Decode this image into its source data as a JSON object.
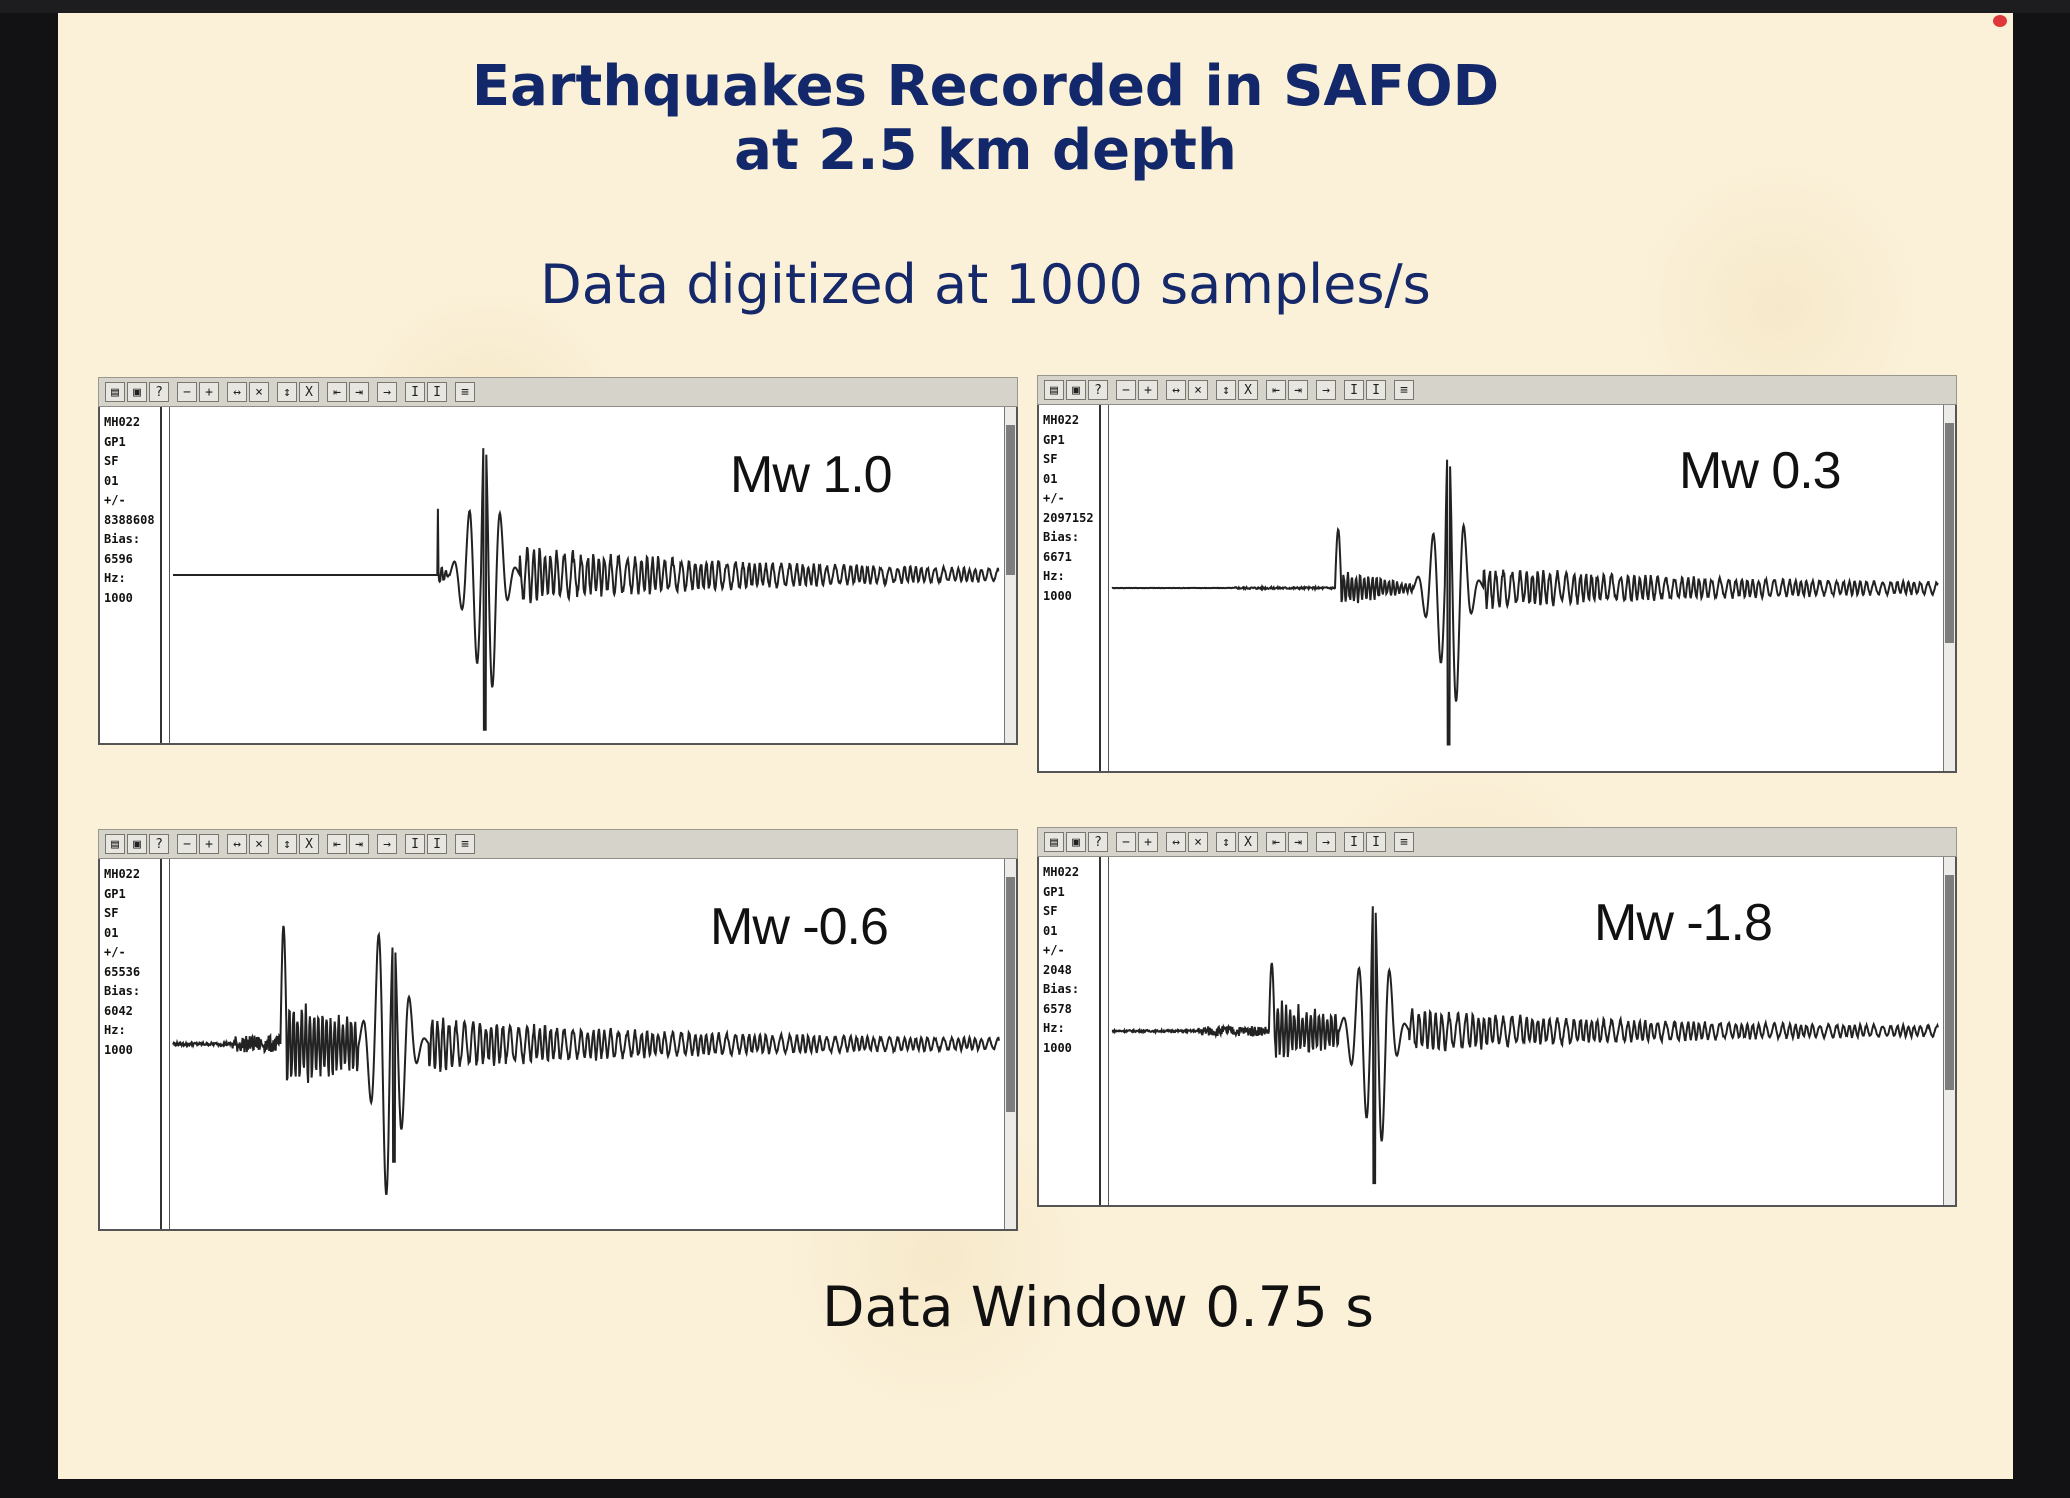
{
  "slide": {
    "title_line1": "Earthquakes Recorded in SAFOD",
    "title_line2": "at 2.5 km depth",
    "subtitle": "Data digitized at 1000 samples/s",
    "footer": "Data Window 0.75 s"
  },
  "colors": {
    "title": "#12286a",
    "background": "#fbf1d9",
    "trace": "#222222"
  },
  "toolbar_icons": [
    "open-icon",
    "print-icon",
    "help-icon",
    "zoom-out-icon",
    "zoom-in-icon",
    "expand-horizontal-icon",
    "compress-horizontal-icon",
    "expand-vertical-icon",
    "compress-vertical-icon",
    "go-start-icon",
    "go-end-icon",
    "next-icon",
    "scale-up-icon",
    "scale-down-icon",
    "options-icon"
  ],
  "chart_data": [
    {
      "type": "line",
      "label": "Mw 1.0",
      "meta": [
        "MH022",
        "GP1",
        "SF",
        "01",
        "+/-",
        "8388608",
        "Bias:",
        "6596",
        "Hz:",
        "1000"
      ],
      "trace_shape": {
        "onset": 0.32,
        "spike": 0.37,
        "amp_down": 0.97,
        "amp_up": 0.58,
        "coda_amp": 0.14,
        "pre_noise": 0.0
      }
    },
    {
      "type": "line",
      "label": "Mw 0.3",
      "meta": [
        "MH022",
        "GP1",
        "SF",
        "01",
        "+/-",
        "2097152",
        "Bias:",
        "6671",
        "Hz:",
        "1000"
      ],
      "trace_shape": {
        "onset": 0.27,
        "spike": 0.4,
        "amp_down": 0.9,
        "amp_up": 0.45,
        "coda_amp": 0.09,
        "pre_noise": 0.02
      }
    },
    {
      "type": "line",
      "label": "Mw -0.6",
      "meta": [
        "MH022",
        "GP1",
        "SF",
        "01",
        "+/-",
        "65536",
        "Bias:",
        "6042",
        "Hz:",
        "1000"
      ],
      "trace_shape": {
        "onset": 0.13,
        "spike": 0.26,
        "amp_down": 0.67,
        "amp_up": 0.9,
        "coda_amp": 0.12,
        "pre_noise": 0.16
      }
    },
    {
      "type": "line",
      "label": "Mw -1.8",
      "meta": [
        "MH022",
        "GP1",
        "SF",
        "01",
        "+/-",
        "2048",
        "Bias:",
        "6578",
        "Hz:",
        "1000"
      ],
      "trace_shape": {
        "onset": 0.19,
        "spike": 0.31,
        "amp_down": 0.92,
        "amp_up": 0.55,
        "coda_amp": 0.1,
        "pre_noise": 0.1
      }
    }
  ]
}
